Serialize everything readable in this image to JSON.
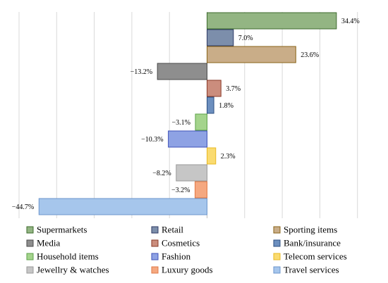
{
  "chart_data": {
    "type": "bar",
    "orientation": "horizontal",
    "title": "",
    "xlabel": "",
    "ylabel": "",
    "xlim": [
      -50,
      50
    ],
    "grid": true,
    "legend_position": "bottom",
    "categories": [
      "Supermarkets",
      "Retail",
      "Sporting items",
      "Media",
      "Cosmetics",
      "Bank/insurance",
      "Household items",
      "Fashion",
      "Telecom services",
      "Jewellry & watches",
      "Luxury goods",
      "Travel services"
    ],
    "values": [
      34.4,
      7.0,
      23.6,
      -13.2,
      3.7,
      1.8,
      -3.1,
      -10.3,
      2.3,
      -8.2,
      -3.2,
      -44.7
    ],
    "labels": [
      "34.4%",
      "7.0%",
      "23.6%",
      "−13.2%",
      "3.7%",
      "1.8%",
      "−3.1%",
      "−10.3%",
      "2.3%",
      "−8.2%",
      "−3.2%",
      "−44.7%"
    ],
    "colors": [
      "#93b583",
      "#7c8eab",
      "#c9ad88",
      "#8e8e8e",
      "#cb8d7d",
      "#6c8fbf",
      "#a4d48c",
      "#8ea2e4",
      "#fadb70",
      "#c6c6c6",
      "#f5a880",
      "#a6c6ec"
    ],
    "borders": [
      "#3e6b2e",
      "#2f3b66",
      "#8a6418",
      "#4a4a4a",
      "#8a3a28",
      "#2c4f80",
      "#5ea24a",
      "#3f52b8",
      "#e8b822",
      "#9a9a9a",
      "#e07a48",
      "#6c96cc"
    ]
  }
}
